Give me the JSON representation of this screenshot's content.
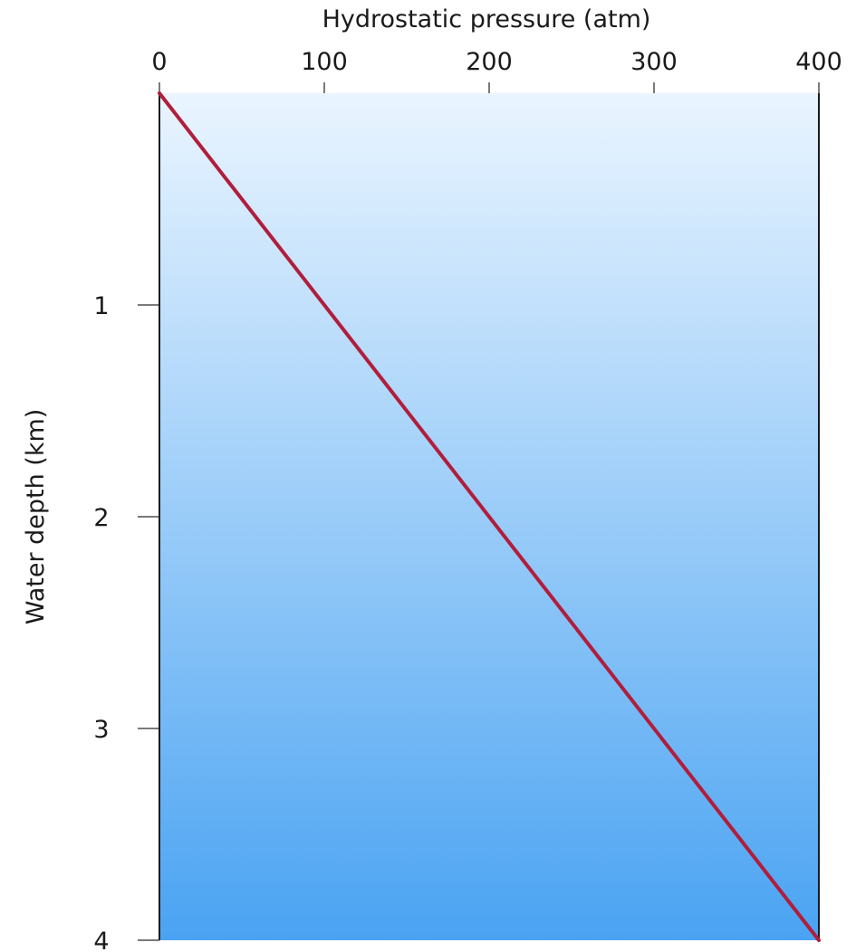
{
  "chart_data": {
    "type": "line",
    "title": "",
    "xlabel": "Hydrostatic pressure (atm)",
    "ylabel": "Water depth (km)",
    "x_axis_position": "top",
    "y_axis_direction": "down",
    "xlim": [
      0,
      400
    ],
    "ylim": [
      0,
      4
    ],
    "x_ticks": [
      0,
      100,
      200,
      300,
      400
    ],
    "y_ticks": [
      1,
      2,
      3,
      4
    ],
    "x_tick_labels": [
      "0",
      "100",
      "200",
      "300",
      "400"
    ],
    "y_tick_labels": [
      "1",
      "2",
      "3",
      "4"
    ],
    "grid": false,
    "legend": "none",
    "series": [
      {
        "x": [
          0,
          400
        ],
        "y": [
          0,
          4
        ],
        "color": "#b01e3c"
      }
    ],
    "colors": {
      "background_top": "#eaf5ff",
      "background_bottom": "#4aa3f2",
      "axis": "#1a1a1a",
      "tick": "#7a7a7a"
    }
  }
}
